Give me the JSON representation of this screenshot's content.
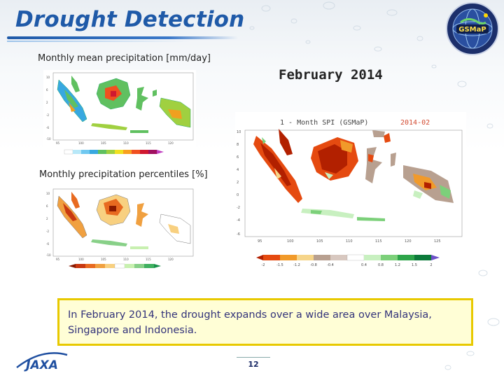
{
  "slide": {
    "title": "Drought Detection",
    "label_mean": "Monthly mean precipitation [mm/day]",
    "label_percentiles": "Monthly precipitation percentiles [%]",
    "date": "February 2014",
    "spi_title": "1 - Month SPI (GSMaP)",
    "spi_date": "2014-02",
    "caption": "In February 2014, the drought expands over a wide area over Malaysia, Singapore and Indonesia.",
    "page_number": "12",
    "logo_text": "GSMaP",
    "jaxa_text": "JAXA"
  },
  "spi_colorbar": {
    "ticks": [
      "-2",
      "-1.5",
      "-1.2",
      "-0.8",
      "-0.4",
      "0.4",
      "0.8",
      "1.2",
      "1.5",
      "2"
    ],
    "colors": [
      "#b22000",
      "#e54a10",
      "#f19a2a",
      "#f6d58a",
      "#b8a090",
      "#d8c8c0",
      "#ffffff",
      "#c8f0c0",
      "#7cd07a",
      "#2ea54a",
      "#0c7a3a",
      "#6d50c8"
    ]
  },
  "mean_colorbar": {
    "colors": [
      "#ffffff",
      "#b8e8f8",
      "#70c8f0",
      "#38a8e0",
      "#60c060",
      "#a0d040",
      "#f0e020",
      "#f8a020",
      "#f05020",
      "#d01830",
      "#a01060",
      "#c040c0"
    ]
  },
  "percentile_colorbar": {
    "colors": [
      "#8a1a00",
      "#c83810",
      "#e86a20",
      "#f0a040",
      "#f8d080",
      "#ffffff",
      "#c8f0b0",
      "#88d088",
      "#40b060",
      "#18904a"
    ]
  }
}
